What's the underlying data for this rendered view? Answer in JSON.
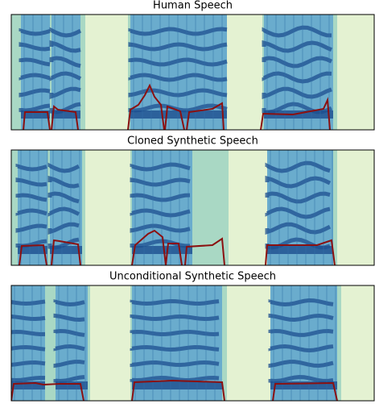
{
  "panels": [
    {
      "title": "Human Speech"
    },
    {
      "title": "Cloned Synthetic Speech"
    },
    {
      "title": "Unconditional Synthetic Speech"
    }
  ]
}
